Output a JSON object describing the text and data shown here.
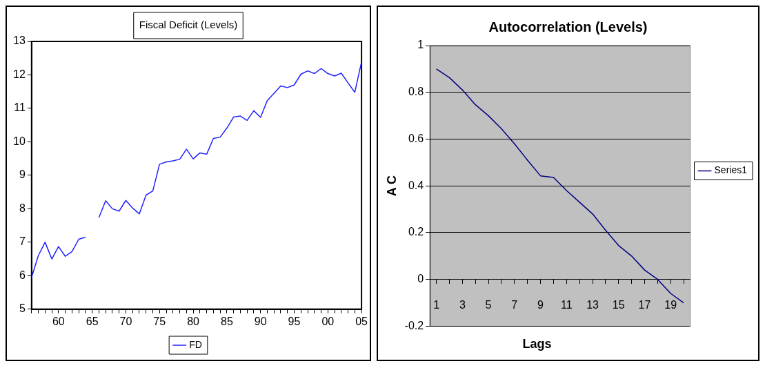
{
  "chart_data": [
    {
      "type": "line",
      "title": "Fiscal Deficit (Levels)",
      "legend": "bottom",
      "grid": false,
      "x": [
        1956,
        1957,
        1958,
        1959,
        1960,
        1961,
        1962,
        1963,
        1964,
        1965,
        1966,
        1967,
        1968,
        1969,
        1970,
        1971,
        1972,
        1973,
        1974,
        1975,
        1976,
        1977,
        1978,
        1979,
        1980,
        1981,
        1982,
        1983,
        1984,
        1985,
        1986,
        1987,
        1988,
        1989,
        1990,
        1991,
        1992,
        1993,
        1994,
        1995,
        1996,
        1997,
        1998,
        1999,
        2000,
        2001,
        2002,
        2003,
        2004,
        2005
      ],
      "series": [
        {
          "name": "FD",
          "color": "#2020ff",
          "values": [
            5.95,
            6.6,
            7.0,
            6.5,
            6.87,
            6.58,
            6.72,
            7.09,
            7.15,
            null,
            7.74,
            8.24,
            8.0,
            7.93,
            8.25,
            8.02,
            7.85,
            8.41,
            8.53,
            9.33,
            9.4,
            9.43,
            9.48,
            9.78,
            9.49,
            9.67,
            9.63,
            10.1,
            10.14,
            10.41,
            10.74,
            10.77,
            10.64,
            10.93,
            10.73,
            11.23,
            11.45,
            11.67,
            11.62,
            11.7,
            12.02,
            12.12,
            12.04,
            12.19,
            12.04,
            11.97,
            12.05,
            11.76,
            11.48,
            12.39
          ]
        }
      ],
      "xlim": [
        1956,
        2005
      ],
      "xticks": [
        {
          "value": 1956,
          "label": null
        },
        {
          "value": 1957,
          "label": null
        },
        {
          "value": 1958,
          "label": null
        },
        {
          "value": 1959,
          "label": null
        },
        {
          "value": 1960,
          "label": "60"
        },
        {
          "value": 1961,
          "label": null
        },
        {
          "value": 1962,
          "label": null
        },
        {
          "value": 1963,
          "label": null
        },
        {
          "value": 1964,
          "label": null
        },
        {
          "value": 1965,
          "label": "65"
        },
        {
          "value": 1966,
          "label": null
        },
        {
          "value": 1967,
          "label": null
        },
        {
          "value": 1968,
          "label": null
        },
        {
          "value": 1969,
          "label": null
        },
        {
          "value": 1970,
          "label": "70"
        },
        {
          "value": 1971,
          "label": null
        },
        {
          "value": 1972,
          "label": null
        },
        {
          "value": 1973,
          "label": null
        },
        {
          "value": 1974,
          "label": null
        },
        {
          "value": 1975,
          "label": "75"
        },
        {
          "value": 1976,
          "label": null
        },
        {
          "value": 1977,
          "label": null
        },
        {
          "value": 1978,
          "label": null
        },
        {
          "value": 1979,
          "label": null
        },
        {
          "value": 1980,
          "label": "80"
        },
        {
          "value": 1981,
          "label": null
        },
        {
          "value": 1982,
          "label": null
        },
        {
          "value": 1983,
          "label": null
        },
        {
          "value": 1984,
          "label": null
        },
        {
          "value": 1985,
          "label": "85"
        },
        {
          "value": 1986,
          "label": null
        },
        {
          "value": 1987,
          "label": null
        },
        {
          "value": 1988,
          "label": null
        },
        {
          "value": 1989,
          "label": null
        },
        {
          "value": 1990,
          "label": "90"
        },
        {
          "value": 1991,
          "label": null
        },
        {
          "value": 1992,
          "label": null
        },
        {
          "value": 1993,
          "label": null
        },
        {
          "value": 1994,
          "label": null
        },
        {
          "value": 1995,
          "label": "95"
        },
        {
          "value": 1996,
          "label": null
        },
        {
          "value": 1997,
          "label": null
        },
        {
          "value": 1998,
          "label": null
        },
        {
          "value": 1999,
          "label": null
        },
        {
          "value": 2000,
          "label": "00"
        },
        {
          "value": 2001,
          "label": null
        },
        {
          "value": 2002,
          "label": null
        },
        {
          "value": 2003,
          "label": null
        },
        {
          "value": 2004,
          "label": null
        },
        {
          "value": 2005,
          "label": "05"
        }
      ],
      "ylim": [
        5,
        13
      ],
      "yticks": [
        5,
        6,
        7,
        8,
        9,
        10,
        11,
        12,
        13
      ]
    },
    {
      "type": "line",
      "title": "Autocorrelation (Levels)",
      "xlabel": "Lags",
      "ylabel": "A C",
      "legend": "right",
      "grid": "y",
      "categories": [
        "1",
        null,
        "3",
        null,
        "5",
        null,
        "7",
        null,
        "9",
        null,
        "11",
        null,
        "13",
        null,
        "15",
        null,
        "17",
        null,
        "19",
        null
      ],
      "series": [
        {
          "name": "Series1",
          "color": "#000080",
          "values": [
            0.9,
            0.863,
            0.81,
            0.747,
            0.7,
            0.644,
            0.58,
            0.51,
            0.443,
            0.436,
            0.38,
            0.33,
            0.28,
            0.21,
            0.145,
            0.1,
            0.04,
            0.0,
            -0.06,
            -0.1
          ]
        }
      ],
      "ylim": [
        -0.2,
        1
      ],
      "yticks": [
        -0.2,
        0,
        0.2,
        0.4,
        0.6,
        0.8,
        1
      ]
    }
  ]
}
